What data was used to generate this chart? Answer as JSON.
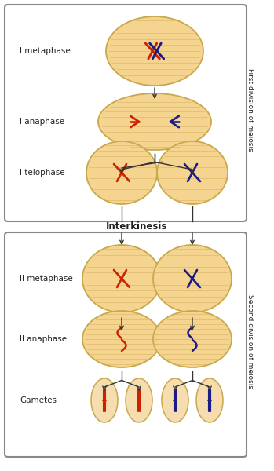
{
  "background_color": "#ffffff",
  "cell_fill": "#f5d490",
  "cell_fill2": "#eedfa0",
  "cell_edge": "#c8a84b",
  "gamete_fill": "#f5ddb0",
  "red_chr": "#cc2200",
  "blue_chr": "#1a1a88",
  "spindle_color": "#d4b060",
  "label_metaphase1": "I metaphase",
  "label_anaphase1": "I anaphase",
  "label_telophase1": "I telophase",
  "label_interkinesis": "Interkinesis",
  "label_metaphase2": "II metaphase",
  "label_anaphase2": "II anaphase",
  "label_gametes": "Gametes",
  "label_first": "First division of meiosis",
  "label_second": "Second division of meiosis",
  "fig_width": 3.49,
  "fig_height": 6.0
}
